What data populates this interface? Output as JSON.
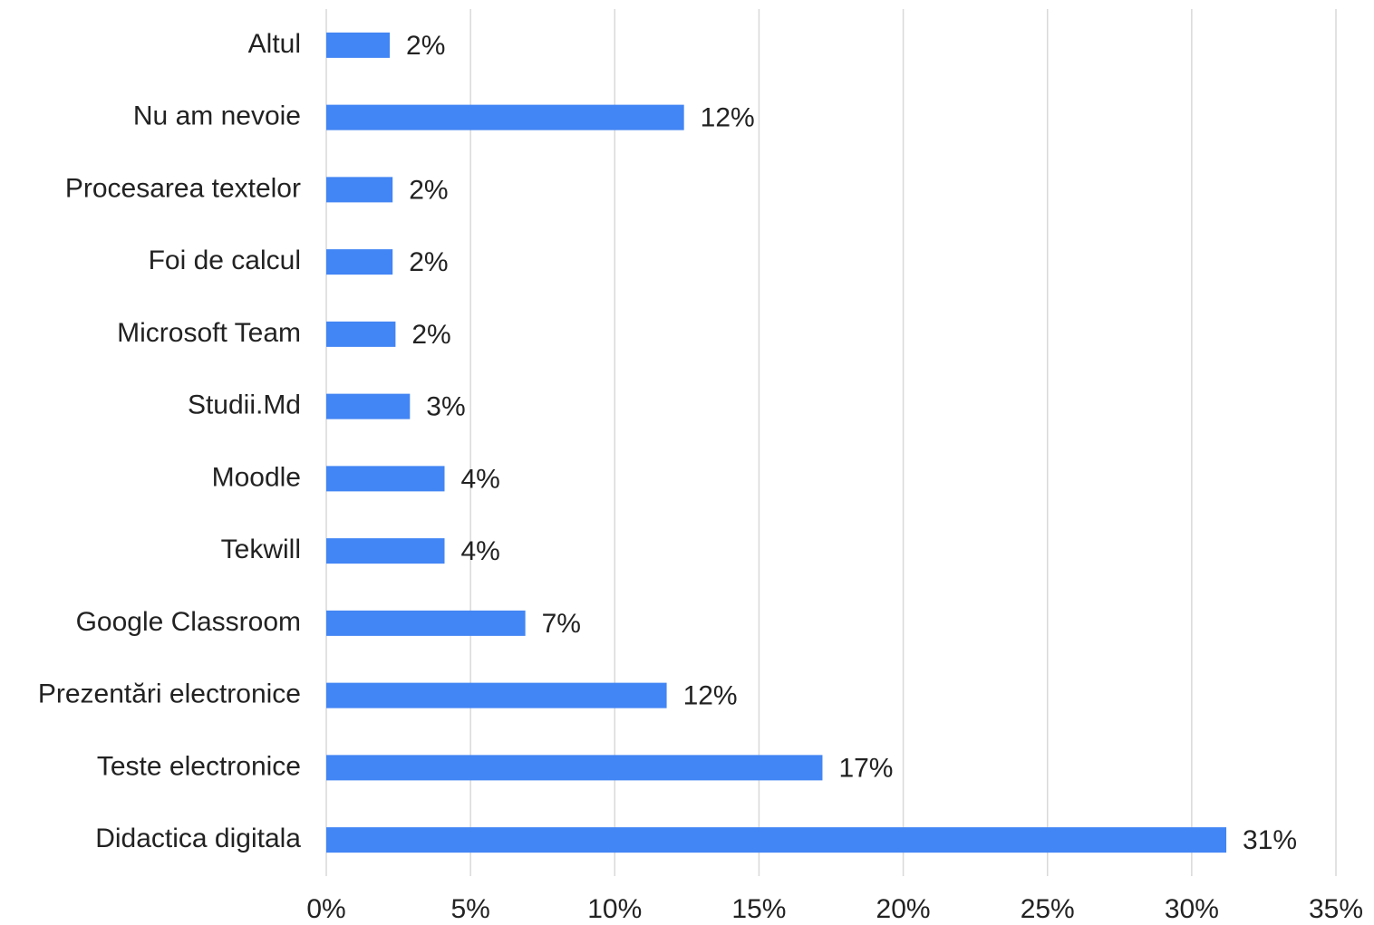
{
  "chart_data": {
    "type": "bar",
    "orientation": "horizontal",
    "categories": [
      "Altul",
      "Nu am nevoie",
      "Procesarea textelor",
      "Foi de calcul",
      "Microsoft Team",
      "Studii.Md",
      "Moodle",
      "Tekwill",
      "Google Classroom",
      "Prezentări electronice",
      "Teste electronice",
      "Didactica digitala"
    ],
    "values": [
      2.2,
      12.4,
      2.3,
      2.3,
      2.4,
      2.9,
      4.1,
      4.1,
      6.9,
      11.8,
      17.2,
      31.2
    ],
    "value_labels": [
      "2%",
      "12%",
      "2%",
      "2%",
      "2%",
      "3%",
      "4%",
      "4%",
      "7%",
      "12%",
      "17%",
      "31%"
    ],
    "color": "#4285f4",
    "xlim": [
      0,
      35
    ],
    "xticks": [
      {
        "value": 0,
        "label": "0%"
      },
      {
        "value": 5,
        "label": "5%"
      },
      {
        "value": 10,
        "label": "10%"
      },
      {
        "value": 15,
        "label": "15%"
      },
      {
        "value": 20,
        "label": "20%"
      },
      {
        "value": 25,
        "label": "25%"
      },
      {
        "value": 30,
        "label": "30%"
      },
      {
        "value": 35,
        "label": "35%"
      }
    ],
    "grid": true
  }
}
